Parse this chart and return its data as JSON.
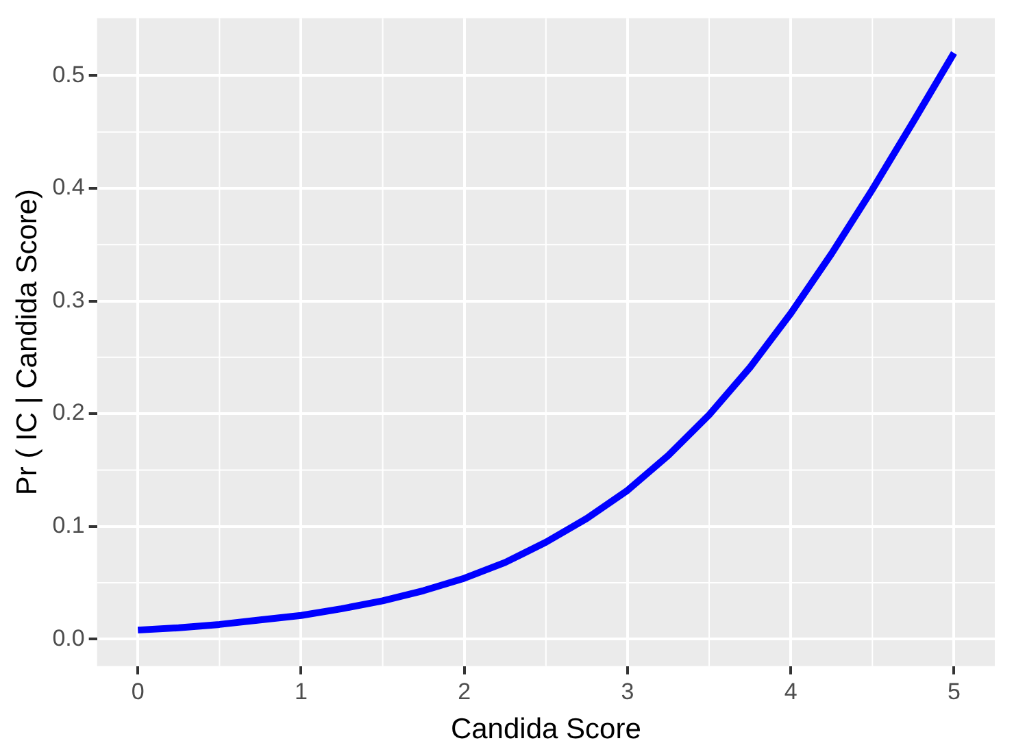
{
  "chart_data": {
    "type": "line",
    "xlabel": "Candida Score",
    "ylabel": "Pr ( IC | Candida Score)",
    "x": [
      0,
      0.25,
      0.5,
      0.75,
      1,
      1.25,
      1.5,
      1.75,
      2,
      2.25,
      2.5,
      2.75,
      3,
      3.25,
      3.5,
      3.75,
      4,
      4.25,
      4.5,
      4.75,
      5
    ],
    "series": [
      {
        "color": "#0000ff",
        "values": [
          0.008,
          0.01,
          0.013,
          0.017,
          0.021,
          0.027,
          0.034,
          0.043,
          0.054,
          0.068,
          0.086,
          0.107,
          0.132,
          0.163,
          0.199,
          0.241,
          0.289,
          0.342,
          0.399,
          0.459,
          0.52
        ]
      }
    ],
    "xlim": [
      -0.25,
      5.25
    ],
    "xticks": [
      0,
      1,
      2,
      3,
      4,
      5
    ],
    "ylim": [
      -0.024,
      0.551
    ],
    "yticks": [
      {
        "value": 0,
        "label": "0.0"
      },
      0.1,
      0.2,
      0.3,
      0.4,
      0.5
    ],
    "grid": true,
    "legend": false,
    "marker": "none",
    "line_style": "solid"
  }
}
